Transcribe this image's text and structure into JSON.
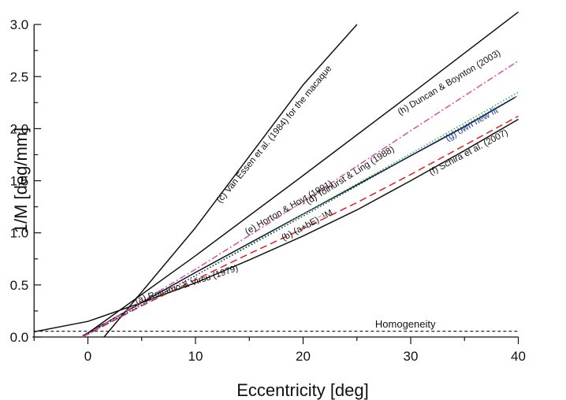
{
  "chart_data": {
    "type": "line",
    "xlabel": "Eccentricity [deg]",
    "ylabel": "1/M  [deg/mm]",
    "xlim": [
      -5,
      40
    ],
    "ylim": [
      0,
      3.0
    ],
    "x_ticks": [
      "0",
      "10",
      "20",
      "30",
      "40"
    ],
    "y_ticks": [
      "0.0",
      "0.5",
      "1.0",
      "1.5",
      "2.0",
      "2.5",
      "3.0"
    ],
    "grid": false,
    "legend": "none (curves labeled inline)",
    "series": [
      {
        "name": "(a) Rovamo & Virsu (1979)",
        "color": "#111111",
        "dash": "solid",
        "x": [
          -5,
          -1,
          0,
          5,
          10,
          15,
          20,
          25,
          30,
          35,
          40
        ],
        "y": [
          0.05,
          0.13,
          0.15,
          0.33,
          0.52,
          0.74,
          0.97,
          1.22,
          1.5,
          1.79,
          2.09
        ],
        "label_text": "(a) Rovamo & Virsu (1979)"
      },
      {
        "name": "(b) (a+bE)⁻¹M",
        "color": "#111111",
        "dash": "solid",
        "x": [
          -0.5,
          5,
          10,
          15,
          20,
          25,
          30,
          35,
          39.7
        ],
        "y": [
          0.01,
          0.33,
          0.62,
          0.9,
          1.18,
          1.46,
          1.74,
          2.02,
          2.3
        ],
        "label_text": "(b) (a+bE)⁻¹M"
      },
      {
        "name": "(c) Van Essen et al. (1984) for the macaque",
        "color": "#111111",
        "dash": "solid",
        "x": [
          1.5,
          10,
          20,
          25
        ],
        "y": [
          0.0,
          1.05,
          2.42,
          3.0
        ],
        "label_text": "(c) Van Essen et al. (1984) for the macaque"
      },
      {
        "name": "(d) Tolhurst & Ling (1988)",
        "color": "#111111",
        "dash": "solid",
        "x": [
          -0.5,
          10,
          20,
          30,
          40
        ],
        "y": [
          0.0,
          0.78,
          1.55,
          2.33,
          3.12
        ],
        "label_text": "(d) Tolhurst & Ling (1988)"
      },
      {
        "name": "(e) Horton & Hoyt (1991)",
        "color": "#2fb34a",
        "dash": "dotted",
        "x": [
          -0.5,
          10,
          20,
          30,
          40
        ],
        "y": [
          0.0,
          0.59,
          1.18,
          1.76,
          2.35
        ],
        "label_text": "(e) Horton & Hoyt (1991)"
      },
      {
        "name": "(f) Schira et al. (2007)",
        "color": "#e02020",
        "dash": "dashed",
        "x": [
          -0.5,
          5,
          10,
          15,
          20,
          25,
          30,
          35,
          40
        ],
        "y": [
          0.0,
          0.3,
          0.55,
          0.8,
          1.04,
          1.29,
          1.56,
          1.84,
          2.12
        ],
        "label_text": "(f) Schira et al. (2007)"
      },
      {
        "name": "(g) own new fit",
        "color": "#1f3d9c",
        "dash": "dotted",
        "x": [
          -0.5,
          10,
          20,
          30,
          40
        ],
        "y": [
          0.0,
          0.59,
          1.16,
          1.74,
          2.32
        ],
        "label_text": "(g) own new fit"
      },
      {
        "name": "(h) Duncan & Boynton (2003)",
        "color": "#d94fa8",
        "dash": "dashdot",
        "x": [
          -0.5,
          10,
          20,
          30,
          40
        ],
        "y": [
          0.0,
          0.65,
          1.3,
          1.98,
          2.65
        ],
        "label_text": "(h) Duncan & Boynton (2003)"
      },
      {
        "name": "Homogeneity",
        "color": "#111111",
        "dash": "dashed",
        "x": [
          -5,
          40
        ],
        "y": [
          0.055,
          0.055
        ],
        "label_text": "Homogeneity"
      }
    ]
  }
}
